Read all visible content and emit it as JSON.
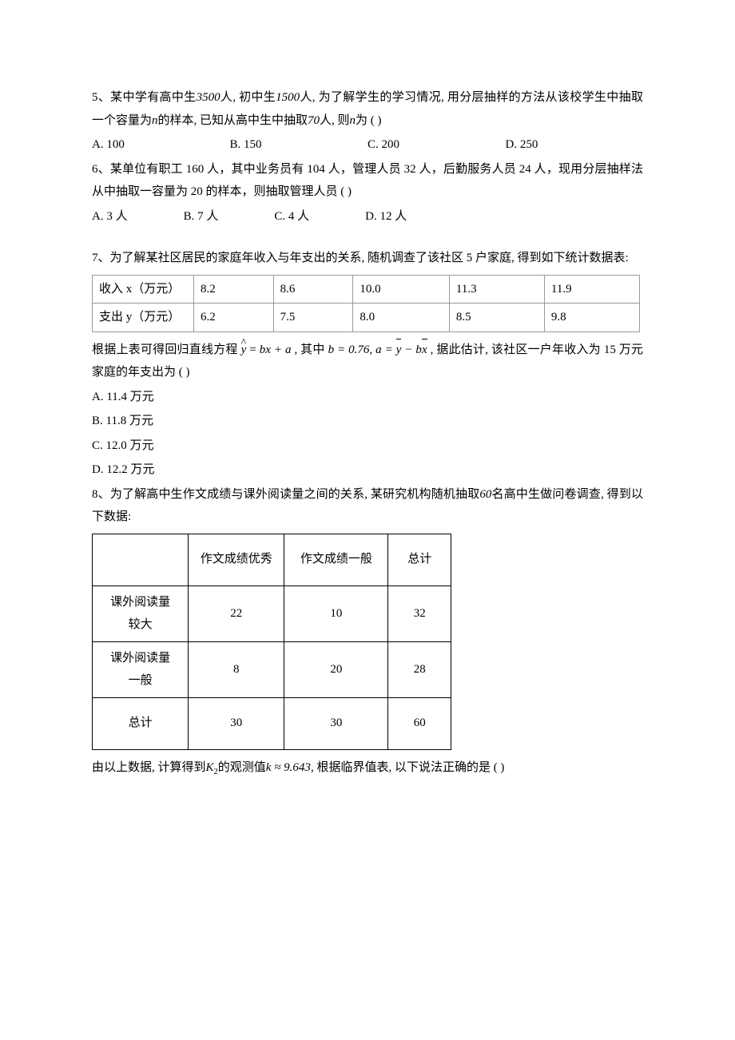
{
  "q5": {
    "text_a": "5、某中学有高中生",
    "val1": "3500",
    "text_b": "人, 初中生",
    "val2": "1500",
    "text_c": "人, 为了解学生的学习情况, 用分层抽样的方法从该校学生中抽取一个容量为",
    "nvar": "n",
    "text_d": "的样本, 已知从高中生中抽取",
    "val3": "70",
    "text_e": "人, 则",
    "text_f": "为 (        )",
    "opts": {
      "a": "A. 100",
      "b": "B. 150",
      "c": "C. 200",
      "d": "D. 250"
    }
  },
  "q6": {
    "text": "6、某单位有职工 160 人，其中业务员有 104 人，管理人员 32 人，后勤服务人员 24 人，现用分层抽样法从中抽取一容量为 20 的样本，则抽取管理人员 (      )",
    "opts": {
      "a": "A. 3 人",
      "b": "B. 7 人",
      "c": "C. 4 人",
      "d": "D. 12 人"
    }
  },
  "q7": {
    "intro": "7、为了解某社区居民的家庭年收入与年支出的关系, 随机调查了该社区 5 户家庭, 得到如下统计数据表:",
    "row1_label": "收入 x（万元）",
    "row2_label": "支出 y（万元）",
    "row1": [
      "8.2",
      "8.6",
      "10.0",
      "11.3",
      "11.9"
    ],
    "row2": [
      "6.2",
      "7.5",
      "8.0",
      "8.5",
      "9.8"
    ],
    "after_a": "根据上表可得回归直线方程",
    "after_b": ", 其中",
    "after_c": ", 据此估计, 该社区一户年收入为 15 万元家庭的年支出为 (        )",
    "eq_y": "y",
    "eq_eq": " = ",
    "eq_bx": "bx + a",
    "eq_bval": "b = 0.76, a = ",
    "eq_ybar": "y",
    "eq_minus": " − b",
    "eq_xbar": "x",
    "opts": {
      "a": "A. 11.4 万元",
      "b": "B. 11.8 万元",
      "c": "C. 12.0 万元",
      "d": "D. 12.2 万元"
    }
  },
  "q8": {
    "intro_a": "8、为了解高中生作文成绩与课外阅读量之间的关系, 某研究机构随机抽取",
    "val60": "60",
    "intro_b": "名高中生做问卷调查, 得到以下数据:",
    "headers": [
      "",
      "作文成绩优秀",
      "作文成绩一般",
      "总计"
    ],
    "rows": [
      {
        "label_a": "课外阅读量",
        "label_b": "较大",
        "c1": "22",
        "c2": "10",
        "c3": "32"
      },
      {
        "label_a": "课外阅读量",
        "label_b": "一般",
        "c1": "8",
        "c2": "20",
        "c3": "28"
      },
      {
        "label_a": "总计",
        "label_b": "",
        "c1": "30",
        "c2": "30",
        "c3": "60"
      }
    ],
    "after_a": "由以上数据, 计算得到",
    "kvar": "K",
    "ksub": "2",
    "after_b": "的观测值",
    "k_obs": "k ≈ 9.643",
    "after_c": ", 根据临界值表, 以下说法正确的是 (          )"
  }
}
